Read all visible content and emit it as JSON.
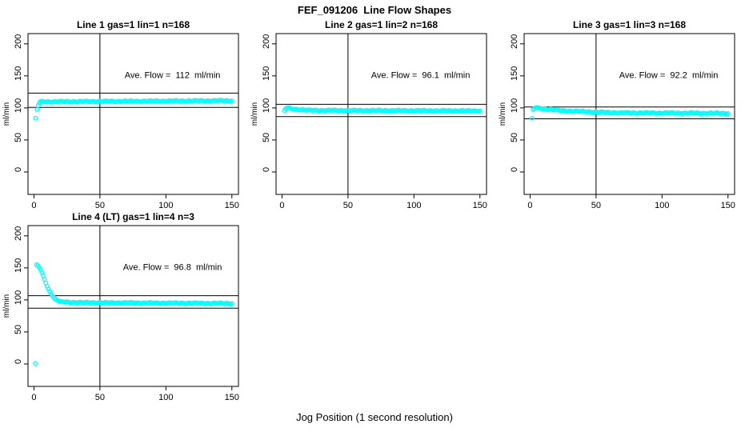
{
  "page": {
    "title": "FEF_091206  Line Flow Shapes",
    "xlabel": "Jog Position (1 second resolution)"
  },
  "colors": {
    "points": "#00FFFF",
    "axis": "#000000",
    "background": "#FFFFFF"
  },
  "chart_data": {
    "type": "scatter",
    "title": "FEF_091206  Line Flow Shapes",
    "xlabel": "Jog Position (1 second resolution)",
    "ylabel": "ml/min",
    "marker": "open-circle",
    "point_color": "#00FFFF",
    "grid": false,
    "x_ticks": [
      0,
      50,
      100,
      150
    ],
    "y_ticks": [
      0,
      50,
      100,
      150,
      200
    ],
    "xlim": [
      -4.5,
      155
    ],
    "ylim": [
      -35,
      216
    ],
    "annotation_pos": {
      "x": 105,
      "y": 152
    },
    "panels": [
      {
        "title": "Line 1 gas=1 lin=1 n=168",
        "annotation": "Ave. Flow =  112  ml/min",
        "ave_flow": 112,
        "n": 168,
        "ref_line_x": 50,
        "ref_lines_y": [
          123.2,
          100.8
        ],
        "head_points": [
          [
            1.2,
            84
          ],
          [
            2.4,
            97.5
          ],
          [
            3.3,
            104
          ],
          [
            4.2,
            108
          ]
        ],
        "runs": [
          {
            "x0": 5,
            "x1": 150,
            "y0": 109.6,
            "y1": 111.4
          }
        ]
      },
      {
        "title": "Line 2 gas=1 lin=2 n=168",
        "annotation": "Ave. Flow =  96.1  ml/min",
        "ave_flow": 96.1,
        "n": 168,
        "ref_line_x": 50,
        "ref_lines_y": [
          105.7,
          86.5
        ],
        "head_points": [
          [
            1.8,
            96
          ],
          [
            2.8,
            98.6
          ],
          [
            3.8,
            99.9
          ],
          [
            4.8,
            100.3
          ],
          [
            5.8,
            100
          ],
          [
            6.8,
            99.2
          ]
        ],
        "runs": [
          {
            "x0": 8,
            "x1": 20,
            "y0": 98.4,
            "y1": 96.4
          },
          {
            "x0": 21,
            "x1": 150,
            "y0": 96.3,
            "y1": 95.4
          }
        ]
      },
      {
        "title": "Line 3 gas=1 lin=3 n=168",
        "annotation": "Ave. Flow =  92.2  ml/min",
        "ave_flow": 92.2,
        "n": 168,
        "ref_line_x": 50,
        "ref_lines_y": [
          101.4,
          83.0
        ],
        "head_points": [
          [
            1.5,
            84
          ],
          [
            2.2,
            97.5
          ],
          [
            3.2,
            99.2
          ],
          [
            4.2,
            100.2
          ],
          [
            5.2,
            100.4
          ]
        ],
        "runs": [
          {
            "x0": 6,
            "x1": 25,
            "y0": 99.8,
            "y1": 95.6
          },
          {
            "x0": 26,
            "x1": 65,
            "y0": 95.4,
            "y1": 92.5
          },
          {
            "x0": 66,
            "x1": 150,
            "y0": 92.4,
            "y1": 91.6
          }
        ]
      },
      {
        "title": "Line 4 (LT) gas=1 lin=4 n=3",
        "annotation": "Ave. Flow =  96.8  ml/min",
        "ave_flow": 96.8,
        "n": 3,
        "ref_line_x": 50,
        "ref_lines_y": [
          106.5,
          87.1
        ],
        "head_points": [
          [
            1,
            1
          ],
          [
            2,
            155
          ],
          [
            3,
            153.5
          ],
          [
            4,
            151
          ],
          [
            5,
            147.5
          ],
          [
            6,
            143
          ],
          [
            7,
            137.5
          ],
          [
            8,
            132
          ],
          [
            9,
            126.5
          ],
          [
            10,
            121.5
          ],
          [
            11,
            117
          ],
          [
            12,
            113
          ],
          [
            13,
            109.5
          ],
          [
            14,
            106.5
          ],
          [
            15,
            104
          ],
          [
            16,
            102
          ],
          [
            17,
            100.4
          ],
          [
            18,
            99.2
          ],
          [
            19,
            98.2
          ],
          [
            20,
            97.4
          ]
        ],
        "runs": [
          {
            "x0": 21,
            "x1": 35,
            "y0": 96.9,
            "y1": 96
          },
          {
            "x0": 36,
            "x1": 150,
            "y0": 95.8,
            "y1": 94.6
          }
        ]
      }
    ]
  }
}
